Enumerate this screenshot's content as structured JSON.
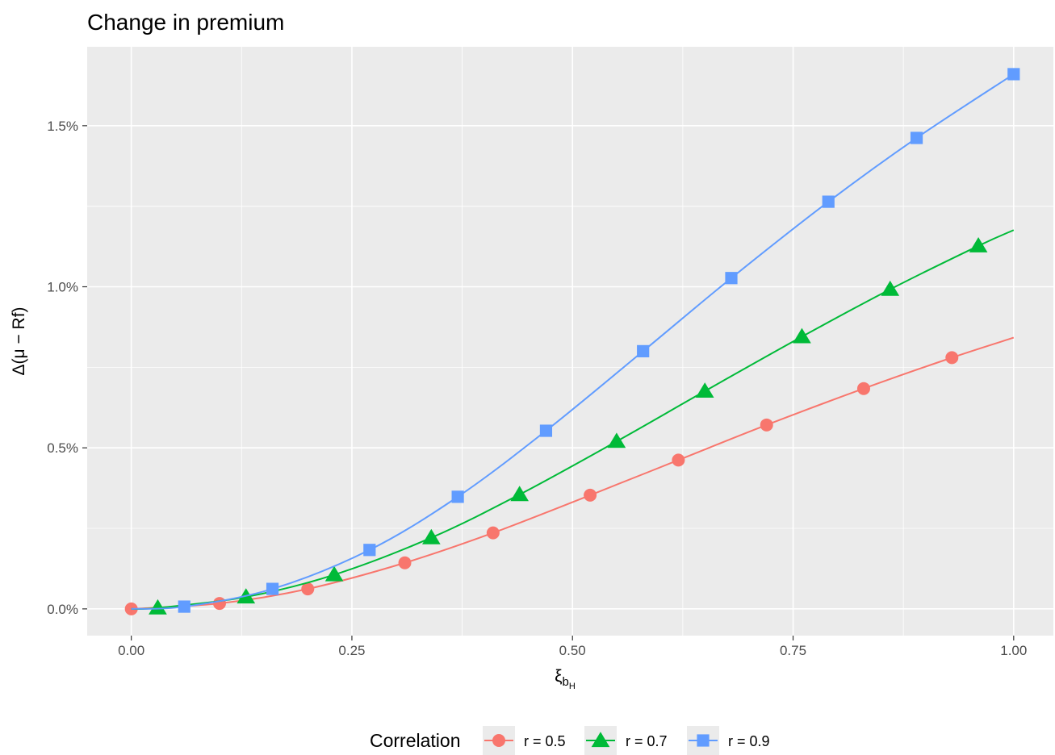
{
  "chart_data": {
    "type": "line",
    "title": "Change in premium",
    "xlabel": "ξ",
    "xlabel_sub": "b",
    "xlabel_subsub": "H",
    "ylabel": "Δ(μ − Rf)",
    "xlim": [
      0,
      1
    ],
    "ylim": [
      0,
      1.66
    ],
    "x_ticks": [
      {
        "value": 0,
        "label": "0.00"
      },
      {
        "value": 0.25,
        "label": "0.25"
      },
      {
        "value": 0.5,
        "label": "0.50"
      },
      {
        "value": 0.75,
        "label": "0.75"
      },
      {
        "value": 1,
        "label": "1.00"
      }
    ],
    "y_ticks": [
      {
        "value": 0,
        "label": "0.0%"
      },
      {
        "value": 0.5,
        "label": "0.5%"
      },
      {
        "value": 1.0,
        "label": "1.0%"
      },
      {
        "value": 1.5,
        "label": "1.5%"
      }
    ],
    "grid": true,
    "legend_position": "bottom",
    "legend_title": "Correlation",
    "series": [
      {
        "name": "r = 0.5",
        "color": "#F8766D",
        "marker": "circle",
        "points": [
          {
            "x": 0.0,
            "y": 0.0
          },
          {
            "x": 0.1,
            "y": 0.017
          },
          {
            "x": 0.2,
            "y": 0.062
          },
          {
            "x": 0.31,
            "y": 0.143
          },
          {
            "x": 0.41,
            "y": 0.236
          },
          {
            "x": 0.52,
            "y": 0.353
          },
          {
            "x": 0.62,
            "y": 0.462
          },
          {
            "x": 0.72,
            "y": 0.571
          },
          {
            "x": 0.83,
            "y": 0.684
          },
          {
            "x": 0.93,
            "y": 0.78
          },
          {
            "x": 1.0,
            "y": 0.842
          }
        ],
        "marker_points": [
          {
            "x": 0.0,
            "y": 0.0
          },
          {
            "x": 0.1,
            "y": 0.017
          },
          {
            "x": 0.2,
            "y": 0.062
          },
          {
            "x": 0.31,
            "y": 0.143
          },
          {
            "x": 0.41,
            "y": 0.236
          },
          {
            "x": 0.52,
            "y": 0.353
          },
          {
            "x": 0.62,
            "y": 0.462
          },
          {
            "x": 0.72,
            "y": 0.571
          },
          {
            "x": 0.83,
            "y": 0.684
          },
          {
            "x": 0.93,
            "y": 0.78
          }
        ]
      },
      {
        "name": "r = 0.7",
        "color": "#00BA38",
        "marker": "triangle",
        "points": [
          {
            "x": 0.0,
            "y": 0.0
          },
          {
            "x": 0.03,
            "y": 0.003
          },
          {
            "x": 0.13,
            "y": 0.037
          },
          {
            "x": 0.23,
            "y": 0.106
          },
          {
            "x": 0.34,
            "y": 0.221
          },
          {
            "x": 0.44,
            "y": 0.355
          },
          {
            "x": 0.55,
            "y": 0.52
          },
          {
            "x": 0.65,
            "y": 0.676
          },
          {
            "x": 0.76,
            "y": 0.845
          },
          {
            "x": 0.86,
            "y": 0.992
          },
          {
            "x": 0.96,
            "y": 1.127
          },
          {
            "x": 1.0,
            "y": 1.176
          }
        ],
        "marker_points": [
          {
            "x": 0.03,
            "y": 0.003
          },
          {
            "x": 0.13,
            "y": 0.037
          },
          {
            "x": 0.23,
            "y": 0.106
          },
          {
            "x": 0.34,
            "y": 0.221
          },
          {
            "x": 0.44,
            "y": 0.355
          },
          {
            "x": 0.55,
            "y": 0.52
          },
          {
            "x": 0.65,
            "y": 0.676
          },
          {
            "x": 0.76,
            "y": 0.845
          },
          {
            "x": 0.86,
            "y": 0.992
          },
          {
            "x": 0.96,
            "y": 1.127
          }
        ]
      },
      {
        "name": "r = 0.9",
        "color": "#619CFF",
        "marker": "square",
        "points": [
          {
            "x": 0.0,
            "y": 0.0
          },
          {
            "x": 0.06,
            "y": 0.007
          },
          {
            "x": 0.16,
            "y": 0.062
          },
          {
            "x": 0.27,
            "y": 0.183
          },
          {
            "x": 0.37,
            "y": 0.348
          },
          {
            "x": 0.47,
            "y": 0.553
          },
          {
            "x": 0.58,
            "y": 0.8
          },
          {
            "x": 0.68,
            "y": 1.027
          },
          {
            "x": 0.79,
            "y": 1.264
          },
          {
            "x": 0.89,
            "y": 1.462
          },
          {
            "x": 1.0,
            "y": 1.66
          }
        ],
        "marker_points": [
          {
            "x": 0.06,
            "y": 0.007
          },
          {
            "x": 0.16,
            "y": 0.062
          },
          {
            "x": 0.27,
            "y": 0.183
          },
          {
            "x": 0.37,
            "y": 0.348
          },
          {
            "x": 0.47,
            "y": 0.553
          },
          {
            "x": 0.58,
            "y": 0.8
          },
          {
            "x": 0.68,
            "y": 1.027
          },
          {
            "x": 0.79,
            "y": 1.264
          },
          {
            "x": 0.89,
            "y": 1.462
          },
          {
            "x": 1.0,
            "y": 1.66
          }
        ]
      }
    ]
  }
}
